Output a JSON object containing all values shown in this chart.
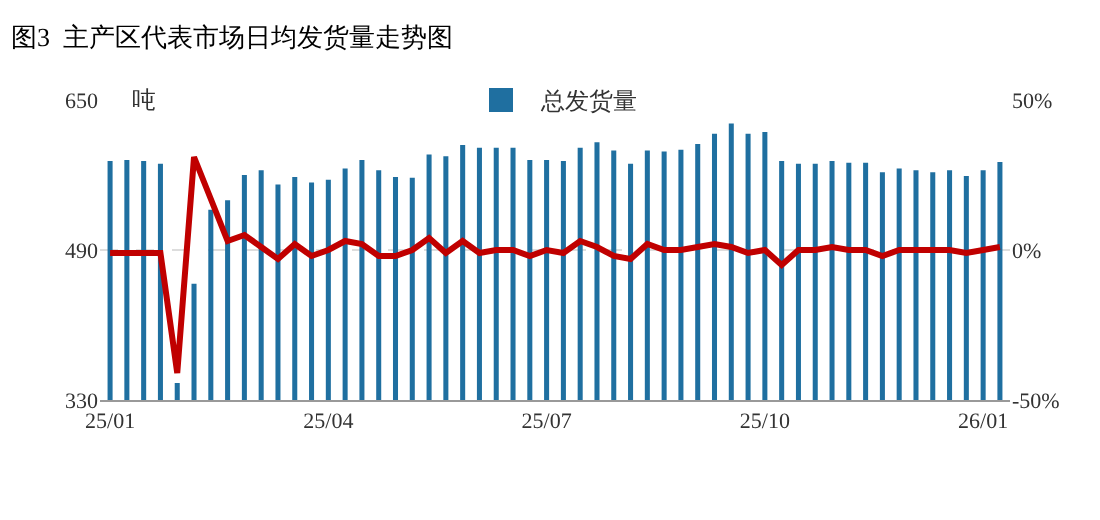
{
  "chart_data": {
    "type": "bar",
    "title": "图3  主产区代表市场日均发货量走势图",
    "ylabel": "吨",
    "categories": [
      "25/01",
      null,
      null,
      null,
      null,
      null,
      null,
      null,
      null,
      null,
      null,
      null,
      null,
      "25/04",
      null,
      null,
      null,
      null,
      null,
      null,
      null,
      null,
      null,
      null,
      null,
      null,
      "25/07",
      null,
      null,
      null,
      null,
      null,
      null,
      null,
      null,
      null,
      null,
      null,
      null,
      "25/10",
      null,
      null,
      null,
      null,
      null,
      null,
      null,
      null,
      null,
      null,
      null,
      null,
      "26/01",
      null
    ],
    "series": [
      {
        "name": "总发货量",
        "color": "#1f6fa0",
        "values": [
          585,
          586,
          585,
          582,
          348,
          454,
          533,
          543,
          570,
          575,
          560,
          568,
          562,
          565,
          577,
          586,
          575,
          568,
          567,
          592,
          590,
          602,
          599,
          599,
          599,
          586,
          586,
          585,
          599,
          605,
          596,
          582,
          596,
          595,
          597,
          603,
          614,
          625,
          614,
          616,
          585,
          582,
          582,
          585,
          583,
          583,
          573,
          577,
          575,
          573,
          575,
          569,
          575,
          584
        ]
      },
      {
        "type": "line",
        "axis": "y2",
        "color": "#c00000",
        "values": [
          -1,
          -1,
          -1,
          -1,
          -41,
          31,
          17,
          3,
          5,
          1,
          -3,
          2,
          -2,
          0,
          3,
          2,
          -2,
          -2,
          0,
          4,
          -1,
          3,
          -1,
          0,
          0,
          -2,
          0,
          -1,
          3,
          1,
          -2,
          -3,
          2,
          0,
          0,
          1,
          2,
          1,
          -1,
          0,
          -5,
          0,
          0,
          1,
          0,
          0,
          -2,
          0,
          0,
          0,
          0,
          -1,
          0,
          1
        ]
      }
    ],
    "ylim": [
      330,
      650
    ],
    "yticks": [
      330,
      490,
      650
    ],
    "y2lim": [
      -50,
      50
    ],
    "y2ticks": [
      {
        "value": -50,
        "label": "-50%"
      },
      {
        "value": 0,
        "label": "0%"
      },
      {
        "value": 50,
        "label": "50%"
      }
    ],
    "grid": "y",
    "legend": "top"
  }
}
